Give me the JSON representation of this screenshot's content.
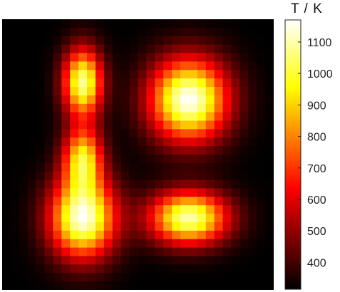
{
  "chart_data": {
    "type": "heatmap",
    "title": "",
    "xlabel": "",
    "ylabel": "",
    "colorbar": {
      "label": "T / K",
      "range": [
        315,
        1170
      ],
      "ticks": [
        400,
        500,
        600,
        700,
        800,
        900,
        1000,
        1100
      ],
      "colormap": "hot"
    },
    "grid_size": [
      32,
      32
    ],
    "background_temperature": 315,
    "hot_spots": [
      {
        "center": [
          9.5,
          7.5
        ],
        "sigma": [
          1.6,
          2.8
        ],
        "peak": 1080
      },
      {
        "center": [
          9.5,
          16.5
        ],
        "sigma": [
          1.6,
          2.6
        ],
        "peak": 930
      },
      {
        "center": [
          9.5,
          23.5
        ],
        "sigma": [
          2.7,
          3.3
        ],
        "peak": 1150
      },
      {
        "center": [
          22.0,
          9.5
        ],
        "sigma": [
          3.2,
          3.4
        ],
        "peak": 1170
      },
      {
        "center": [
          22.0,
          23.5
        ],
        "sigma": [
          3.2,
          2.2
        ],
        "peak": 1100
      }
    ]
  }
}
